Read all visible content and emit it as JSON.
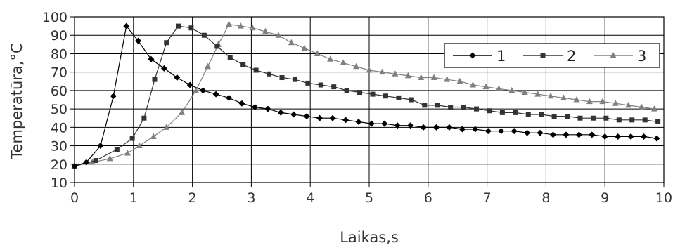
{
  "chart_data": {
    "type": "line",
    "title": "",
    "xlabel": "Laikas,s",
    "ylabel": "Temperatūra,°C",
    "xlim": [
      0,
      10
    ],
    "ylim": [
      10,
      100
    ],
    "xticks": [
      "0",
      "1",
      "2",
      "3",
      "4",
      "5",
      "6",
      "7",
      "8",
      "9",
      "10"
    ],
    "yticks": [
      "10",
      "20",
      "30",
      "40",
      "50",
      "60",
      "70",
      "80",
      "90",
      "100"
    ],
    "grid": true,
    "legend_position": "top-right",
    "series": [
      {
        "name": "1",
        "marker": "diamond",
        "color": "#000000",
        "points": [
          [
            0,
            19
          ],
          [
            0.2,
            21
          ],
          [
            0.44,
            30
          ],
          [
            0.66,
            57
          ],
          [
            0.88,
            95
          ],
          [
            1.08,
            87
          ],
          [
            1.3,
            77
          ],
          [
            1.52,
            72
          ],
          [
            1.74,
            67
          ],
          [
            1.96,
            63
          ],
          [
            2.18,
            60
          ],
          [
            2.4,
            58
          ],
          [
            2.62,
            56
          ],
          [
            2.84,
            53
          ],
          [
            3.06,
            51
          ],
          [
            3.28,
            50
          ],
          [
            3.5,
            48
          ],
          [
            3.72,
            47
          ],
          [
            3.94,
            46
          ],
          [
            4.16,
            45
          ],
          [
            4.38,
            45
          ],
          [
            4.6,
            44
          ],
          [
            4.82,
            43
          ],
          [
            5.04,
            42
          ],
          [
            5.26,
            42
          ],
          [
            5.48,
            41
          ],
          [
            5.7,
            41
          ],
          [
            5.92,
            40
          ],
          [
            6.14,
            40
          ],
          [
            6.36,
            40
          ],
          [
            6.58,
            39
          ],
          [
            6.8,
            39
          ],
          [
            7.02,
            38
          ],
          [
            7.24,
            38
          ],
          [
            7.46,
            38
          ],
          [
            7.68,
            37
          ],
          [
            7.9,
            37
          ],
          [
            8.12,
            36
          ],
          [
            8.34,
            36
          ],
          [
            8.56,
            36
          ],
          [
            8.78,
            36
          ],
          [
            9.0,
            35
          ],
          [
            9.22,
            35
          ],
          [
            9.44,
            35
          ],
          [
            9.66,
            35
          ],
          [
            9.88,
            34
          ]
        ]
      },
      {
        "name": "2",
        "marker": "square",
        "color": "#333333",
        "points": [
          [
            0,
            19
          ],
          [
            0.36,
            22
          ],
          [
            0.72,
            28
          ],
          [
            0.98,
            34
          ],
          [
            1.18,
            45
          ],
          [
            1.36,
            66
          ],
          [
            1.56,
            86
          ],
          [
            1.76,
            95
          ],
          [
            1.98,
            94
          ],
          [
            2.2,
            90
          ],
          [
            2.42,
            84
          ],
          [
            2.64,
            78
          ],
          [
            2.86,
            74
          ],
          [
            3.08,
            71
          ],
          [
            3.3,
            69
          ],
          [
            3.52,
            67
          ],
          [
            3.74,
            66
          ],
          [
            3.96,
            64
          ],
          [
            4.18,
            63
          ],
          [
            4.4,
            62
          ],
          [
            4.62,
            60
          ],
          [
            4.84,
            59
          ],
          [
            5.06,
            58
          ],
          [
            5.28,
            57
          ],
          [
            5.5,
            56
          ],
          [
            5.72,
            55
          ],
          [
            5.94,
            52
          ],
          [
            6.16,
            52
          ],
          [
            6.38,
            51
          ],
          [
            6.6,
            51
          ],
          [
            6.82,
            50
          ],
          [
            7.04,
            49
          ],
          [
            7.26,
            48
          ],
          [
            7.48,
            48
          ],
          [
            7.7,
            47
          ],
          [
            7.92,
            47
          ],
          [
            8.14,
            46
          ],
          [
            8.36,
            46
          ],
          [
            8.58,
            45
          ],
          [
            8.8,
            45
          ],
          [
            9.02,
            45
          ],
          [
            9.24,
            44
          ],
          [
            9.46,
            44
          ],
          [
            9.68,
            44
          ],
          [
            9.9,
            43
          ]
        ]
      },
      {
        "name": "3",
        "marker": "triangle",
        "color": "#808080",
        "points": [
          [
            0,
            19
          ],
          [
            0.3,
            21
          ],
          [
            0.6,
            23
          ],
          [
            0.9,
            26
          ],
          [
            1.1,
            30
          ],
          [
            1.34,
            35
          ],
          [
            1.56,
            40
          ],
          [
            1.82,
            48
          ],
          [
            2.06,
            60
          ],
          [
            2.26,
            73
          ],
          [
            2.44,
            85
          ],
          [
            2.62,
            96
          ],
          [
            2.82,
            95
          ],
          [
            3.02,
            94
          ],
          [
            3.24,
            92
          ],
          [
            3.46,
            90
          ],
          [
            3.68,
            86
          ],
          [
            3.9,
            83
          ],
          [
            4.12,
            80
          ],
          [
            4.34,
            77
          ],
          [
            4.56,
            75
          ],
          [
            4.78,
            73
          ],
          [
            5.0,
            71
          ],
          [
            5.22,
            70
          ],
          [
            5.44,
            69
          ],
          [
            5.66,
            68
          ],
          [
            5.88,
            67
          ],
          [
            6.1,
            67
          ],
          [
            6.32,
            66
          ],
          [
            6.54,
            65
          ],
          [
            6.76,
            63
          ],
          [
            6.98,
            62
          ],
          [
            7.2,
            61
          ],
          [
            7.42,
            60
          ],
          [
            7.64,
            59
          ],
          [
            7.86,
            58
          ],
          [
            8.08,
            57
          ],
          [
            8.3,
            56
          ],
          [
            8.52,
            55
          ],
          [
            8.74,
            54
          ],
          [
            8.96,
            54
          ],
          [
            9.18,
            53
          ],
          [
            9.4,
            52
          ],
          [
            9.62,
            51
          ],
          [
            9.84,
            50
          ]
        ]
      }
    ]
  }
}
